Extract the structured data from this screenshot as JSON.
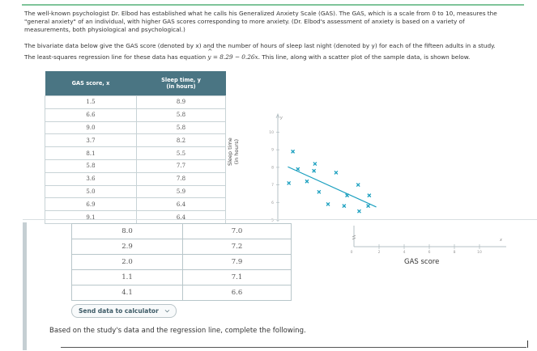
{
  "intro": {
    "paragraph1_line1": "The well-known psychologist Dr. Elbod has established what he calls his Generalized Anxiety Scale (GAS). The GAS, which is a scale from 0 to 10, measures the",
    "paragraph1_line2": "\"general anxiety\" of an individual, with higher GAS scores corresponding to more anxiety. (Dr. Elbod's assessment of anxiety is based on a variety of",
    "paragraph1_line3": "measurements, both physiological and psychological.)",
    "paragraph2": "The bivariate data below give the GAS score (denoted by x) and the number of hours of sleep last night (denoted by y) for each of the fifteen adults in a study.",
    "paragraph3_pre": "The least-squares regression line for these data has equation",
    "paragraph3_eq_lhs": "y",
    "paragraph3_eq_rhs": "= 8.29 − 0.26x.",
    "paragraph3_post": "This line, along with a scatter plot of the sample data, is shown below."
  },
  "table": {
    "header_x": "GAS score, x",
    "header_y_line1": "Sleep time, y",
    "header_y_line2": "(in hours)",
    "rows": [
      {
        "x": "1.5",
        "y": "8.9"
      },
      {
        "x": "6.6",
        "y": "5.8"
      },
      {
        "x": "9.0",
        "y": "5.8"
      },
      {
        "x": "3.7",
        "y": "8.2"
      },
      {
        "x": "8.1",
        "y": "5.5"
      },
      {
        "x": "5.8",
        "y": "7.7"
      },
      {
        "x": "3.6",
        "y": "7.8"
      },
      {
        "x": "5.0",
        "y": "5.9"
      },
      {
        "x": "6.9",
        "y": "6.4"
      },
      {
        "x": "9.1",
        "y": "6.4"
      },
      {
        "x": "8.0",
        "y": "7.0"
      },
      {
        "x": "2.9",
        "y": "7.2"
      },
      {
        "x": "2.0",
        "y": "7.9"
      },
      {
        "x": "1.1",
        "y": "7.1"
      },
      {
        "x": "4.1",
        "y": "6.6"
      }
    ]
  },
  "send_button": {
    "label": "Send data to calculator"
  },
  "prompt": "Based on the study's data and the regression line, complete the following.",
  "chart_data": {
    "type": "scatter",
    "title": "",
    "xlabel": "GAS score",
    "ylabel_line1": "Sleep time",
    "ylabel_line2": "(in hours)",
    "x_axis_symbol": "x",
    "y_axis_symbol": "y",
    "x_ticks": [
      "0",
      "2",
      "4",
      "6",
      "8",
      "10"
    ],
    "y_ticks": [
      "5",
      "6",
      "7",
      "8",
      "9",
      "10"
    ],
    "xlim": [
      0,
      12
    ],
    "ylim": [
      5,
      10.5
    ],
    "points": [
      [
        1.5,
        8.9
      ],
      [
        6.6,
        5.8
      ],
      [
        9.0,
        5.8
      ],
      [
        3.7,
        8.2
      ],
      [
        8.1,
        5.5
      ],
      [
        5.8,
        7.7
      ],
      [
        3.6,
        7.8
      ],
      [
        5.0,
        5.9
      ],
      [
        6.9,
        6.4
      ],
      [
        9.1,
        6.4
      ],
      [
        8.0,
        7.0
      ],
      [
        2.9,
        7.2
      ],
      [
        2.0,
        7.9
      ],
      [
        1.1,
        7.1
      ],
      [
        4.1,
        6.6
      ]
    ],
    "regression": {
      "intercept": 8.29,
      "slope": -0.26,
      "x_from": 1.0,
      "x_to": 9.8,
      "label": "ŷ = 8.29 − 0.26x"
    },
    "marker_color": "#1a9fbf",
    "line_color": "#1a9fbf"
  }
}
